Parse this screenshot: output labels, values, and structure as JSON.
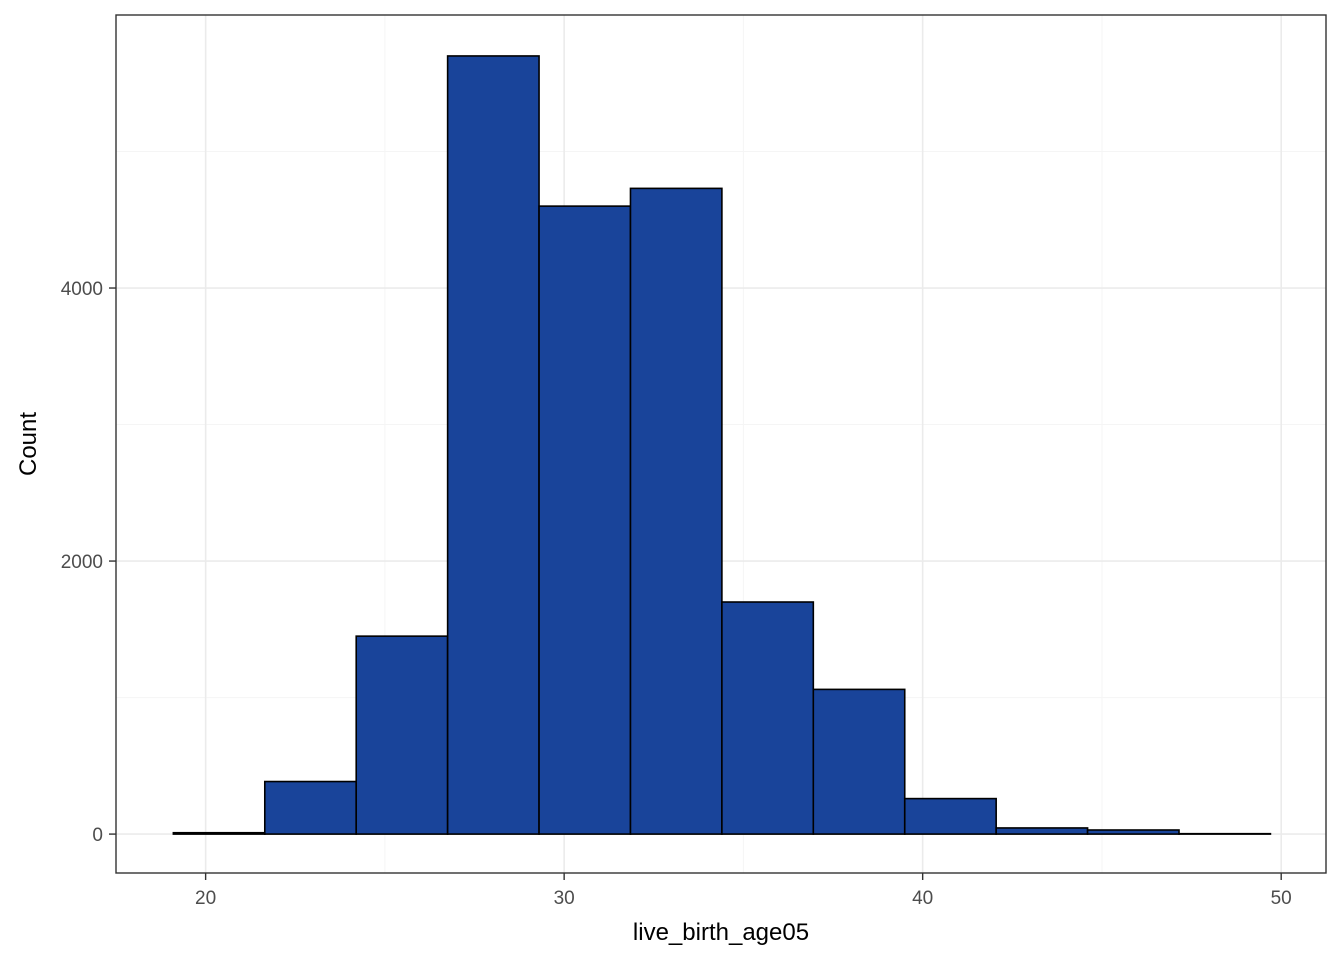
{
  "chart_data": {
    "type": "histogram",
    "xlabel": "live_birth_age05",
    "ylabel": "Count",
    "xlim": [
      17.5,
      51.25
    ],
    "ylim": [
      -285,
      6000
    ],
    "x_ticks": [
      20,
      30,
      40,
      50
    ],
    "x_minor_ticks": [
      25,
      35,
      45
    ],
    "y_ticks": [
      0,
      2000,
      4000
    ],
    "y_minor_ticks": [
      1000,
      3000,
      5000
    ],
    "grid": true,
    "bars": [
      {
        "x0": 19.1,
        "x1": 21.65,
        "value": 10
      },
      {
        "x0": 21.65,
        "x1": 24.2,
        "value": 385
      },
      {
        "x0": 24.2,
        "x1": 26.75,
        "value": 1450
      },
      {
        "x0": 26.75,
        "x1": 29.3,
        "value": 5700
      },
      {
        "x0": 29.3,
        "x1": 31.85,
        "value": 4600
      },
      {
        "x0": 31.85,
        "x1": 34.4,
        "value": 4730
      },
      {
        "x0": 34.4,
        "x1": 36.95,
        "value": 1700
      },
      {
        "x0": 36.95,
        "x1": 39.5,
        "value": 1060
      },
      {
        "x0": 39.5,
        "x1": 42.05,
        "value": 260
      },
      {
        "x0": 42.05,
        "x1": 44.6,
        "value": 45
      },
      {
        "x0": 44.6,
        "x1": 47.15,
        "value": 30
      },
      {
        "x0": 47.15,
        "x1": 49.7,
        "value": 3
      }
    ],
    "colors": {
      "fill": "#19449a",
      "stroke": "#000000",
      "grid_major": "#ebebeb",
      "grid_minor": "#f5f5f5",
      "panel_border": "#333333"
    }
  }
}
